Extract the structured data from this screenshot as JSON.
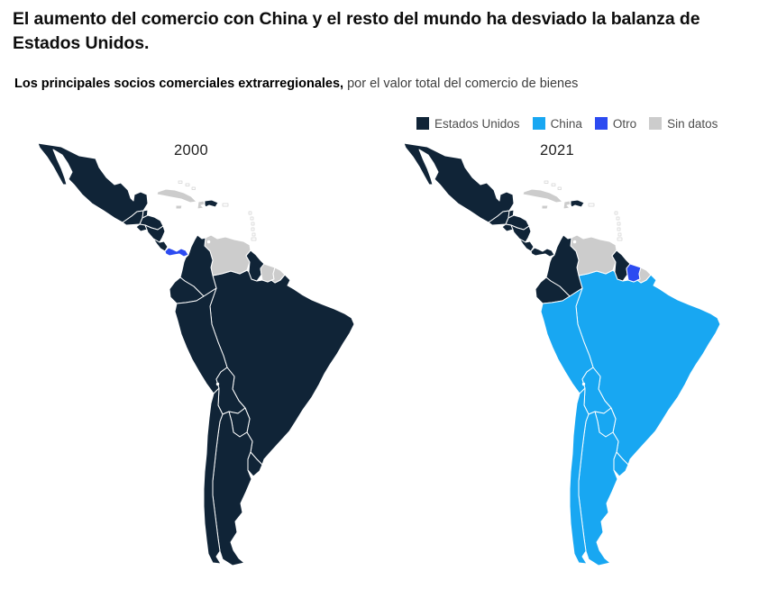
{
  "header": {
    "title": "El aumento del comercio con China y el resto del mundo ha desviado la balanza de Estados Unidos.",
    "subtitle_bold": "Los principales socios comerciales extrarregionales,",
    "subtitle_rest": " por el valor total del comercio de bienes"
  },
  "chart_data": {
    "type": "choropleth_map",
    "title": "Los principales socios comerciales extrarregionales, por el valor total del comercio de bienes",
    "legend_position": "top-right",
    "legend": [
      {
        "label": "Estados Unidos",
        "category": "us"
      },
      {
        "label": "China",
        "category": "china"
      },
      {
        "label": "Otro",
        "category": "otro"
      },
      {
        "label": "Sin datos",
        "category": "nodata"
      }
    ],
    "colors": {
      "us": "#102437",
      "china": "#18a7f2",
      "otro": "#2c4bf1",
      "nodata": "#cccccc",
      "none": "#ffffff"
    },
    "maps": [
      {
        "year": "2000",
        "assignments": {
          "mexico": "us",
          "belize": "us",
          "guatemala": "us",
          "honduras": "us",
          "el_salvador": "us",
          "nicaragua": "us",
          "costa_rica": "us",
          "panama": "otro",
          "cuba": "nodata",
          "jamaica": "nodata",
          "haiti": "nodata",
          "dominican_republic": "us",
          "puerto_rico": "none",
          "bahamas": "none",
          "lesser_antilles": "none",
          "trinidad_tobago": "none",
          "colombia": "us",
          "venezuela": "nodata",
          "guyana": "us",
          "suriname": "nodata",
          "french_guiana": "nodata",
          "ecuador": "us",
          "peru": "us",
          "brazil": "us",
          "bolivia": "us",
          "paraguay": "us",
          "chile": "us",
          "argentina": "us",
          "uruguay": "us"
        }
      },
      {
        "year": "2021",
        "assignments": {
          "mexico": "us",
          "belize": "us",
          "guatemala": "us",
          "honduras": "us",
          "el_salvador": "us",
          "nicaragua": "us",
          "costa_rica": "us",
          "panama": "us",
          "cuba": "nodata",
          "jamaica": "nodata",
          "haiti": "nodata",
          "dominican_republic": "us",
          "puerto_rico": "none",
          "bahamas": "none",
          "lesser_antilles": "none",
          "trinidad_tobago": "none",
          "colombia": "us",
          "venezuela": "nodata",
          "guyana": "us",
          "suriname": "otro",
          "french_guiana": "nodata",
          "ecuador": "us",
          "peru": "china",
          "brazil": "china",
          "bolivia": "china",
          "paraguay": "china",
          "chile": "china",
          "argentina": "china",
          "uruguay": "china"
        }
      }
    ]
  }
}
